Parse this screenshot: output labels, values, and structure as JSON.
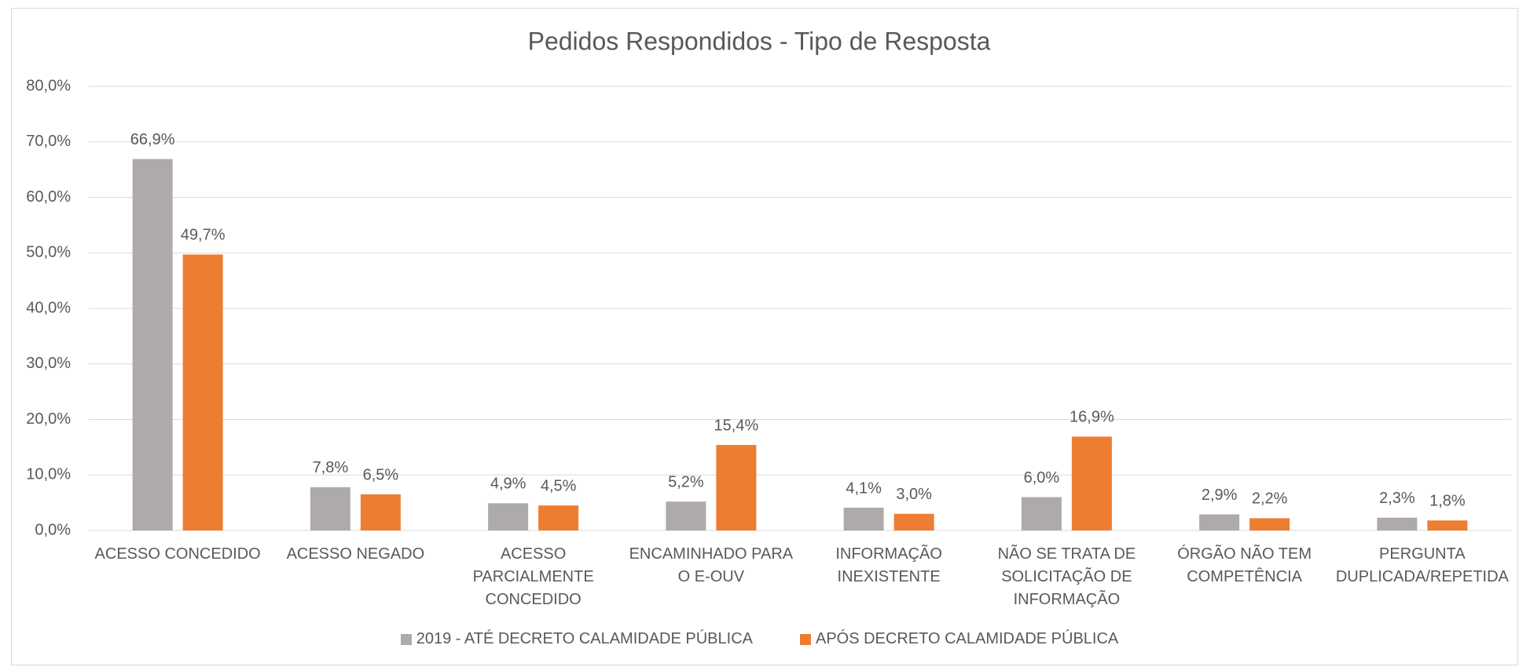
{
  "chart_data": {
    "type": "bar",
    "title": "Pedidos Respondidos - Tipo de Resposta",
    "categories": [
      "ACESSO CONCEDIDO",
      "ACESSO NEGADO",
      "ACESSO PARCIALMENTE CONCEDIDO",
      "ENCAMINHADO PARA O E-OUV",
      "INFORMAÇÃO INEXISTENTE",
      "NÃO SE TRATA DE SOLICITAÇÃO DE INFORMAÇÃO",
      "ÓRGÃO NÃO TEM COMPETÊNCIA",
      "PERGUNTA DUPLICADA/REPETIDA"
    ],
    "series": [
      {
        "name": "2019 - ATÉ DECRETO CALAMIDADE PÚBLICA",
        "color": "#aeaaaa",
        "values": [
          66.9,
          7.8,
          4.9,
          5.2,
          4.1,
          6.0,
          2.9,
          2.3
        ],
        "value_labels": [
          "66,9%",
          "7,8%",
          "4,9%",
          "5,2%",
          "4,1%",
          "6,0%",
          "2,9%",
          "2,3%"
        ]
      },
      {
        "name": "APÓS DECRETO CALAMIDADE PÚBLICA",
        "color": "#ed7d31",
        "values": [
          49.7,
          6.5,
          4.5,
          15.4,
          3.0,
          16.9,
          2.2,
          1.8
        ],
        "value_labels": [
          "49,7%",
          "6,5%",
          "4,5%",
          "15,4%",
          "3,0%",
          "16,9%",
          "2,2%",
          "1,8%"
        ]
      }
    ],
    "ylim": [
      0,
      80
    ],
    "yticks": [
      {
        "value": 0,
        "label": "0,0%"
      },
      {
        "value": 10,
        "label": "10,0%"
      },
      {
        "value": 20,
        "label": "20,0%"
      },
      {
        "value": 30,
        "label": "30,0%"
      },
      {
        "value": 40,
        "label": "40,0%"
      },
      {
        "value": 50,
        "label": "50,0%"
      },
      {
        "value": 60,
        "label": "60,0%"
      },
      {
        "value": 70,
        "label": "70,0%"
      },
      {
        "value": 80,
        "label": "80,0%"
      }
    ],
    "grid": true,
    "legend": "bottom"
  }
}
